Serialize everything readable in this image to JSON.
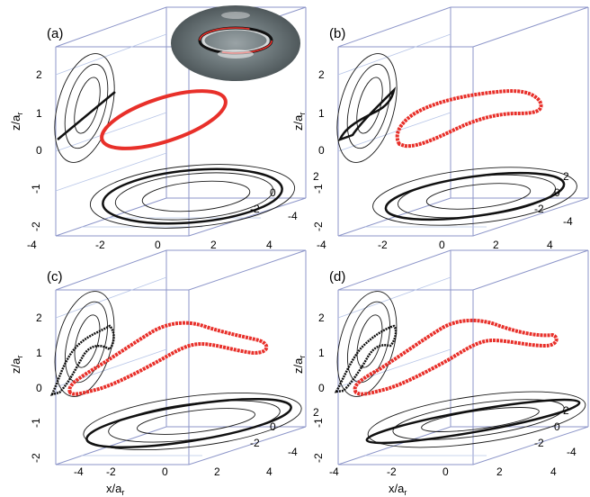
{
  "figure": {
    "colors": {
      "box": "#8c95c9",
      "grid": "#b8c6e8",
      "contour": "#1a1a1a",
      "ring": "#e8302a",
      "projection": "#111111",
      "plane": "#6f7a7d"
    },
    "axis_titles": {
      "x_main": "x/a",
      "x_sub": "r",
      "z_main": "z/a",
      "z_sub": "r"
    },
    "panels": [
      {
        "label": "(a)",
        "x_ticks": [
          "-4",
          "-2",
          "0",
          "2",
          "4"
        ],
        "y_ticks": [
          "2",
          "0",
          "-2",
          "-4"
        ],
        "z_ticks": [
          "2",
          "1",
          "0",
          "-1",
          "-2"
        ],
        "show_x_title": false
      },
      {
        "label": "(b)",
        "x_ticks": [
          "-4",
          "-2",
          "0",
          "2",
          "4"
        ],
        "y_ticks": [
          "2",
          "0",
          "-2",
          "-4"
        ],
        "z_ticks": [
          "2",
          "1",
          "0",
          "-1",
          "-2"
        ],
        "show_x_title": false
      },
      {
        "label": "(c)",
        "x_ticks": [
          "-4",
          "-2",
          "0",
          "2",
          "4"
        ],
        "y_ticks": [
          "2",
          "0",
          "-2",
          "-4"
        ],
        "z_ticks": [
          "2",
          "1",
          "0",
          "-1",
          "-2"
        ],
        "show_x_title": true
      },
      {
        "label": "(d)",
        "x_ticks": [
          "-4",
          "-2",
          "0",
          "2",
          "4"
        ],
        "y_ticks": [
          "2",
          "0",
          "-2",
          "-4"
        ],
        "z_ticks": [
          "2",
          "1",
          "0",
          "-1",
          "-2"
        ],
        "show_x_title": true
      }
    ]
  }
}
